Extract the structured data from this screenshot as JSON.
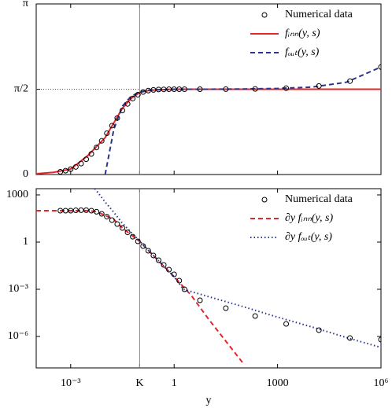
{
  "chart_data": [
    {
      "type": "line",
      "sharex": true,
      "legend": "upper right",
      "ylim": [
        0,
        3.14159
      ],
      "yticks": [
        0,
        {
          "value": 1.5708,
          "label": "π/2"
        },
        {
          "value": 3.14159,
          "label": "π"
        }
      ],
      "series": [
        {
          "name": "Numerical data",
          "style": "markers",
          "color": "#000000",
          "x": [
            0.000501,
            0.000708,
            0.001,
            0.00141,
            0.002,
            0.00282,
            0.00398,
            0.00562,
            0.00794,
            0.0112,
            0.0158,
            0.0224,
            0.0316,
            0.0447,
            0.0631,
            0.0891,
            0.126,
            0.178,
            0.251,
            0.355,
            0.501,
            0.708,
            1,
            1.41,
            2,
            5.62,
            31.6,
            224,
            1778,
            15849,
            125893,
            1000000
          ],
          "values": [
            0.05,
            0.07,
            0.1,
            0.14,
            0.2,
            0.28,
            0.38,
            0.5,
            0.62,
            0.76,
            0.9,
            1.04,
            1.18,
            1.3,
            1.4,
            1.47,
            1.52,
            1.545,
            1.558,
            1.565,
            1.568,
            1.57,
            1.5705,
            1.5708,
            1.571,
            1.571,
            1.572,
            1.576,
            1.59,
            1.63,
            1.72,
            1.98
          ]
        },
        {
          "name": "fᵢₙₙ(y, s)",
          "style": "solid",
          "color": "#e3262b",
          "x": [
            0.0001,
            0.000316,
            0.001,
            0.00316,
            0.01,
            0.0178,
            0.0316,
            0.0562,
            0.1,
            0.178,
            0.316,
            1,
            1000000
          ],
          "values": [
            0.015,
            0.04,
            0.1,
            0.35,
            0.68,
            0.95,
            1.22,
            1.4,
            1.51,
            1.545,
            1.56,
            1.5708,
            1.5708
          ]
        },
        {
          "name": "fₒᵤₜ(y, s)",
          "style": "dashed",
          "color": "#2b3590",
          "x": [
            0.01,
            0.0178,
            0.0316,
            0.0562,
            0.1,
            0.178,
            1,
            10,
            100,
            1000,
            10000,
            100000,
            1000000
          ],
          "values": [
            0,
            0.83,
            1.26,
            1.44,
            1.52,
            1.555,
            1.57,
            1.571,
            1.575,
            1.585,
            1.61,
            1.7,
            1.98
          ]
        }
      ]
    },
    {
      "type": "line",
      "legend": "upper right",
      "xlog": true,
      "ylog": true,
      "xlabel": "y",
      "xlim": [
        0.0001,
        1000000
      ],
      "xticks": [
        {
          "value": 0.001,
          "label": "10⁻³"
        },
        {
          "value": 0.1,
          "label": "K"
        },
        1,
        1000,
        {
          "value": 1000000,
          "label": "10⁶"
        }
      ],
      "ylim": [
        1e-08,
        2500
      ],
      "yticks": [
        {
          "value": 1e-06,
          "label": "10⁻⁶"
        },
        {
          "value": 0.001,
          "label": "10⁻³"
        },
        1,
        1000
      ],
      "series": [
        {
          "name": "Numerical data",
          "style": "markers",
          "color": "#000000",
          "x": [
            0.000501,
            0.000708,
            0.001,
            0.00141,
            0.002,
            0.00282,
            0.00398,
            0.00562,
            0.00794,
            0.0112,
            0.0158,
            0.0224,
            0.0316,
            0.0447,
            0.0631,
            0.0891,
            0.126,
            0.178,
            0.251,
            0.355,
            0.501,
            0.708,
            1,
            1.41,
            2,
            5.62,
            31.6,
            224,
            1778,
            15849,
            125893,
            1000000
          ],
          "values": [
            100,
            100,
            100,
            105,
            107,
            107,
            100,
            85,
            63,
            41.7,
            25.1,
            14.1,
            7.94,
            4.17,
            2.19,
            1.12,
            0.562,
            0.282,
            0.141,
            0.0708,
            0.0355,
            0.0178,
            0.00891,
            0.00355,
            0.001,
            0.0002,
            6.3e-05,
            2e-05,
            6.3e-06,
            2.5e-06,
            7.9e-07,
            6.3e-07
          ]
        },
        {
          "name": "∂y fᵢₙₙ(y, s)",
          "style": "dashed",
          "color": "#e3262b",
          "x": [
            0.0001,
            0.001,
            0.00316,
            0.00562,
            0.01,
            0.0178,
            0.0316,
            0.1,
            0.316,
            1,
            3.16,
            10,
            31.6,
            100
          ],
          "values": [
            100,
            100,
            100,
            85,
            50,
            28,
            7.9,
            1.1,
            0.083,
            0.0063,
            0.0004,
            1.26e-05,
            5e-07,
            2e-08
          ]
        },
        {
          "name": "∂y fₒᵤₜ(y, s)",
          "style": "dotted",
          "color": "#2b3590",
          "x": [
            0.00501,
            0.01,
            0.0178,
            0.0316,
            0.1,
            0.316,
            1,
            1.86,
            10,
            100,
            1000,
            10000,
            100000,
            1000000
          ],
          "values": [
            2512,
            355,
            79,
            15.8,
            1.15,
            0.083,
            0.0063,
            0.001,
            0.00034,
            7.9e-05,
            1.7e-05,
            4e-06,
            8.5e-07,
            2e-07
          ]
        }
      ]
    }
  ]
}
